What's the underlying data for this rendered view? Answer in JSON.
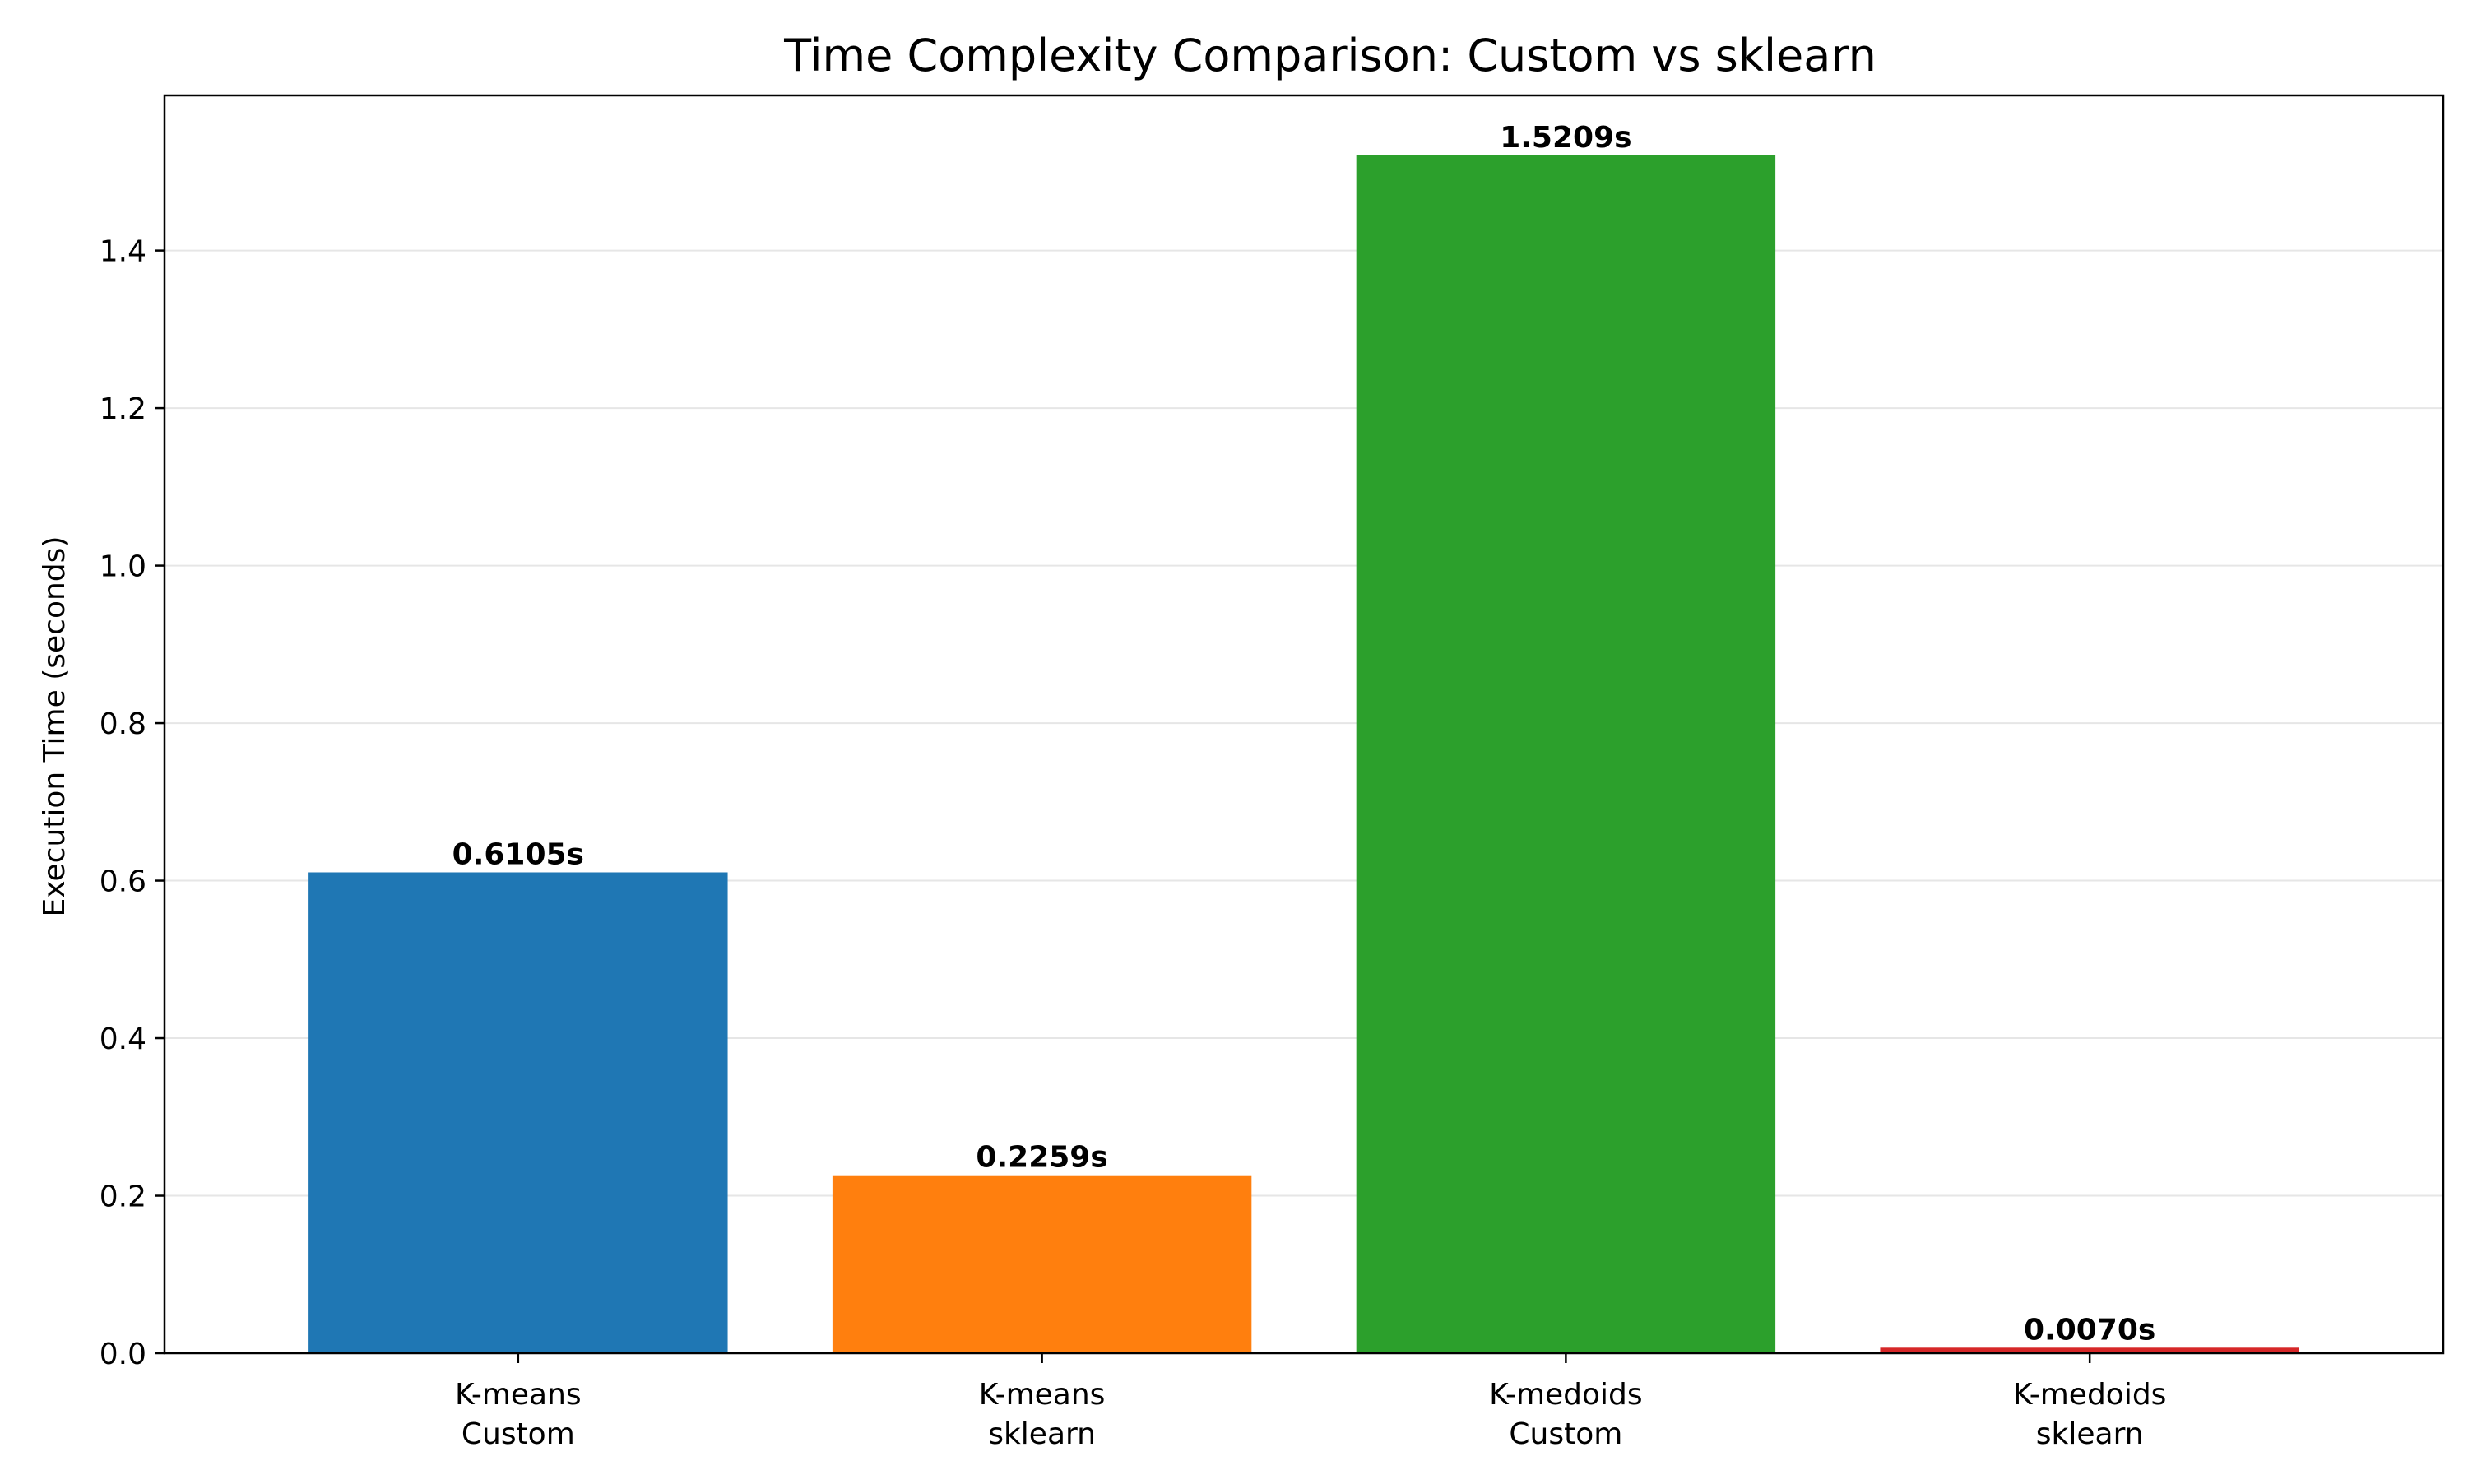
{
  "chart_data": {
    "type": "bar",
    "title": "Time Complexity Comparison: Custom vs sklearn",
    "xlabel": "",
    "ylabel": "Execution Time (seconds)",
    "categories": [
      [
        "K-means",
        "Custom"
      ],
      [
        "K-means",
        "sklearn"
      ],
      [
        "K-medoids",
        "Custom"
      ],
      [
        "K-medoids",
        "sklearn"
      ]
    ],
    "values": [
      0.6105,
      0.2259,
      1.5209,
      0.007
    ],
    "value_labels": [
      "0.6105s",
      "0.2259s",
      "1.5209s",
      "0.0070s"
    ],
    "colors": [
      "#1f77b4",
      "#ff7f0e",
      "#2ca02c",
      "#d62728"
    ],
    "ylim": [
      0,
      1.597
    ],
    "yticks": [
      0.0,
      0.2,
      0.4,
      0.6,
      0.8,
      1.0,
      1.2,
      1.4
    ],
    "ytick_labels": [
      "0.0",
      "0.2",
      "0.4",
      "0.6",
      "0.8",
      "1.0",
      "1.2",
      "1.4"
    ],
    "grid": "horizontal",
    "legend": "none"
  }
}
